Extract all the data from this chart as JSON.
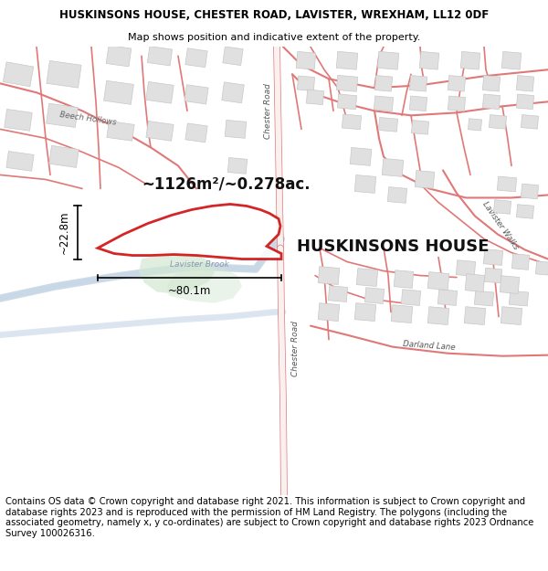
{
  "title_line1": "HUSKINSONS HOUSE, CHESTER ROAD, LAVISTER, WREXHAM, LL12 0DF",
  "title_line2": "Map shows position and indicative extent of the property.",
  "property_label": "HUSKINSONS HOUSE",
  "area_label": "~1126m²/~0.278ac.",
  "dim_horizontal": "~80.1m",
  "dim_vertical": "~22.8m",
  "brook_label": "Lavister Brook",
  "road_label_chester_upper": "Chester Road",
  "road_label_chester_lower": "Chester Road",
  "road_label_lavister": "Lavister Walks",
  "road_label_dorland": "Darland Lane",
  "beech_label": "Beech Hollows",
  "footer_text": "Contains OS data © Crown copyright and database right 2021. This information is subject to Crown copyright and database rights 2023 and is reproduced with the permission of HM Land Registry. The polygons (including the associated geometry, namely x, y co-ordinates) are subject to Crown copyright and database rights 2023 Ordnance Survey 100026316.",
  "bg_color": "#ffffff",
  "map_bg": "#ffffff",
  "road_stroke": "#e8a0a0",
  "road_stroke_dark": "#e07878",
  "property_stroke": "#cc0000",
  "green_fill": "#d4e8d4",
  "water_fill": "#c8d8e8",
  "building_fill": "#e0e0e0",
  "building_stroke": "#c8c8c8",
  "title_fontsize": 8.5,
  "subtitle_fontsize": 8,
  "footer_fontsize": 7.2,
  "map_border_color": "#aaaaaa"
}
